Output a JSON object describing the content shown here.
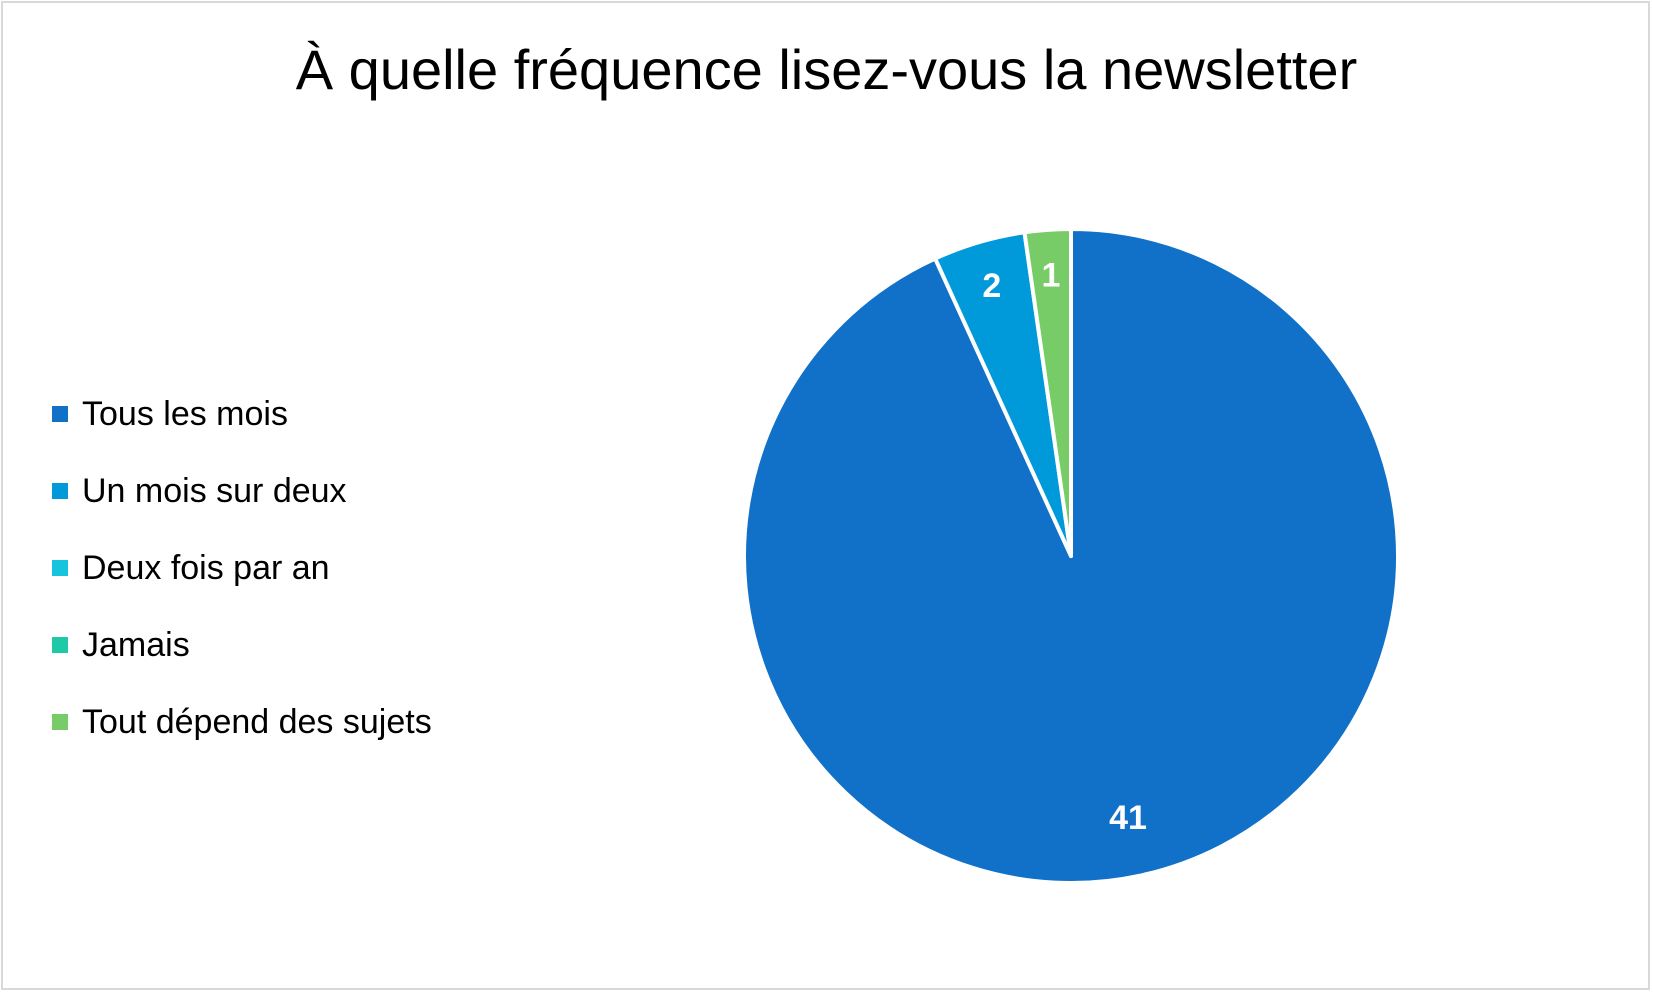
{
  "chart_data": {
    "type": "pie",
    "title": "À quelle fréquence lisez-vous la newsletter",
    "categories": [
      "Tous les mois",
      "Un mois sur deux",
      "Deux fois par an",
      "Jamais",
      "Tout dépend des sujets"
    ],
    "values": [
      41,
      2,
      0,
      0,
      1
    ],
    "data_labels": [
      "41",
      "2",
      "",
      "",
      "1"
    ],
    "colors": [
      "#1170c8",
      "#0099d9",
      "#17c4de",
      "#1dc9a6",
      "#78cc68"
    ],
    "legend_position": "left",
    "start_angle": "top",
    "direction": "clockwise"
  }
}
